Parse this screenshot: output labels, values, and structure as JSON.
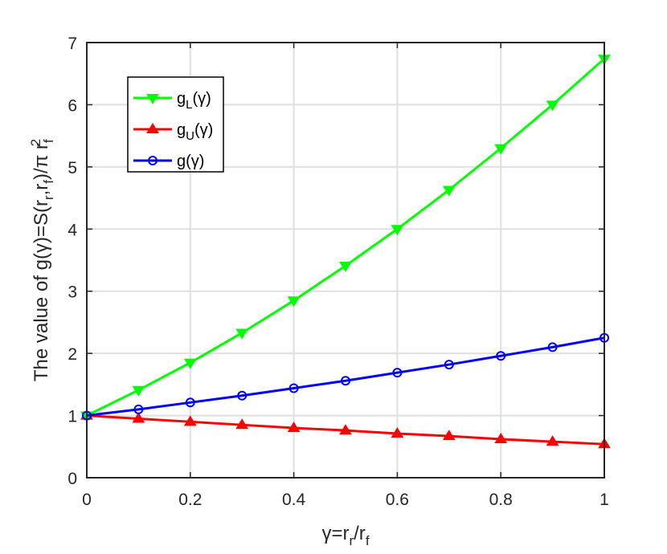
{
  "chart_data": {
    "type": "line",
    "title": "",
    "xlabel": "γ=r_r/r_f",
    "ylabel": "The value of g(γ)=S(r_r,r_f)/π r_f^2",
    "xlim": [
      0,
      1
    ],
    "ylim": [
      0,
      7
    ],
    "x_ticks": [
      "0",
      "0.2",
      "0.4",
      "0.6",
      "0.8",
      "1"
    ],
    "y_ticks": [
      "0",
      "1",
      "2",
      "3",
      "4",
      "5",
      "6",
      "7"
    ],
    "grid": true,
    "legend_position": "top-left",
    "x": [
      0,
      0.1,
      0.2,
      0.3,
      0.4,
      0.5,
      0.6,
      0.7,
      0.8,
      0.9,
      1.0
    ],
    "series": [
      {
        "name": "g_L(γ)",
        "color": "#00ff00",
        "marker": "triangle-down",
        "values": [
          1.0,
          1.41,
          1.85,
          2.33,
          2.85,
          3.41,
          4.0,
          4.63,
          5.3,
          6.0,
          6.74
        ]
      },
      {
        "name": "g_U(γ)",
        "color": "#ff0000",
        "marker": "triangle-up",
        "values": [
          1.0,
          0.95,
          0.9,
          0.85,
          0.8,
          0.76,
          0.71,
          0.67,
          0.62,
          0.58,
          0.54
        ]
      },
      {
        "name": "g(γ)",
        "color": "#0000ff",
        "marker": "circle",
        "values": [
          1.0,
          1.1,
          1.21,
          1.32,
          1.44,
          1.56,
          1.69,
          1.82,
          1.96,
          2.1,
          2.25
        ]
      }
    ]
  }
}
